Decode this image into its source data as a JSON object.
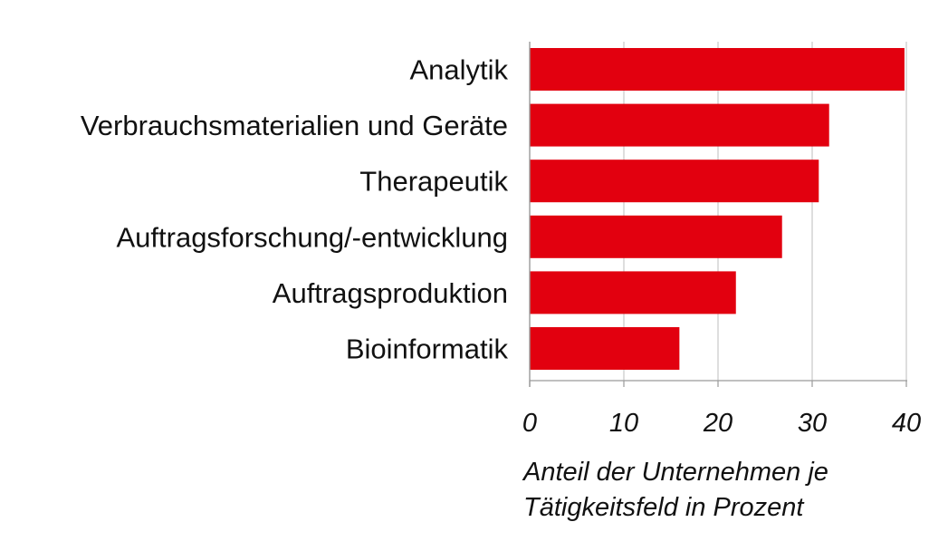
{
  "chart_data": {
    "type": "bar",
    "orientation": "horizontal",
    "categories": [
      "Analytik",
      "Verbrauchsmaterialien und Geräte",
      "Therapeutik",
      "Auftragsforschung/-entwicklung",
      "Auftragsproduktion",
      "Bioinformatik"
    ],
    "values": [
      39.8,
      31.8,
      30.7,
      26.8,
      21.9,
      15.9
    ],
    "xlim": [
      0,
      40
    ],
    "xticks": [
      "0",
      "10",
      "20",
      "30",
      "40"
    ],
    "xlabel_lines": [
      "Anteil der Unternehmen je",
      "Tätigkeitsfeld in Prozent"
    ],
    "grid": "vertical",
    "bar_color": "#e2000f",
    "grid_color": "#c8c8c8",
    "axis_color": "#9a9a9a"
  }
}
